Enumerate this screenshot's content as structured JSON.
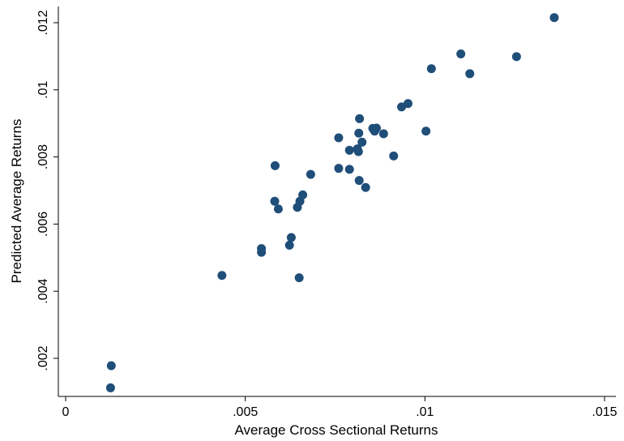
{
  "chart_data": {
    "type": "scatter",
    "title": "",
    "xlabel": "Average Cross Sectional Returns",
    "ylabel": "Predicted Average Returns",
    "xlim": [
      0,
      0.0155
    ],
    "ylim": [
      0.0009,
      0.0124
    ],
    "x_ticks": [
      0,
      0.005,
      0.01,
      0.015
    ],
    "x_tick_labels": [
      "0",
      ".005",
      ".01",
      ".015"
    ],
    "y_ticks": [
      0.002,
      0.004,
      0.006,
      0.008,
      0.01,
      0.012
    ],
    "y_tick_labels": [
      ".002",
      ".004",
      ".006",
      ".008",
      ".01",
      ".012"
    ],
    "grid": false,
    "marker_color": "#1f4e79",
    "points": [
      {
        "x": 0.00125,
        "y": 0.00112
      },
      {
        "x": 0.00127,
        "y": 0.00178
      },
      {
        "x": 0.00435,
        "y": 0.00447
      },
      {
        "x": 0.00545,
        "y": 0.00516
      },
      {
        "x": 0.00545,
        "y": 0.00527
      },
      {
        "x": 0.00582,
        "y": 0.00668
      },
      {
        "x": 0.00583,
        "y": 0.00774
      },
      {
        "x": 0.00592,
        "y": 0.00645
      },
      {
        "x": 0.00623,
        "y": 0.00537
      },
      {
        "x": 0.00628,
        "y": 0.0056
      },
      {
        "x": 0.00645,
        "y": 0.0065
      },
      {
        "x": 0.0065,
        "y": 0.0044
      },
      {
        "x": 0.00652,
        "y": 0.00668
      },
      {
        "x": 0.0066,
        "y": 0.00687
      },
      {
        "x": 0.00682,
        "y": 0.00748
      },
      {
        "x": 0.0076,
        "y": 0.00766
      },
      {
        "x": 0.0076,
        "y": 0.00857
      },
      {
        "x": 0.0079,
        "y": 0.0082
      },
      {
        "x": 0.0079,
        "y": 0.00763
      },
      {
        "x": 0.00812,
        "y": 0.00824
      },
      {
        "x": 0.00815,
        "y": 0.00816
      },
      {
        "x": 0.00816,
        "y": 0.00871
      },
      {
        "x": 0.00817,
        "y": 0.0073
      },
      {
        "x": 0.00818,
        "y": 0.00914
      },
      {
        "x": 0.00825,
        "y": 0.00844
      },
      {
        "x": 0.00835,
        "y": 0.00709
      },
      {
        "x": 0.00855,
        "y": 0.00885
      },
      {
        "x": 0.0086,
        "y": 0.00877
      },
      {
        "x": 0.00865,
        "y": 0.00886
      },
      {
        "x": 0.00885,
        "y": 0.00869
      },
      {
        "x": 0.00913,
        "y": 0.00803
      },
      {
        "x": 0.00935,
        "y": 0.00949
      },
      {
        "x": 0.00953,
        "y": 0.00959
      },
      {
        "x": 0.01003,
        "y": 0.00877
      },
      {
        "x": 0.01018,
        "y": 0.01063
      },
      {
        "x": 0.011,
        "y": 0.01107
      },
      {
        "x": 0.01125,
        "y": 0.01048
      },
      {
        "x": 0.01255,
        "y": 0.01099
      },
      {
        "x": 0.0136,
        "y": 0.01215
      }
    ]
  }
}
